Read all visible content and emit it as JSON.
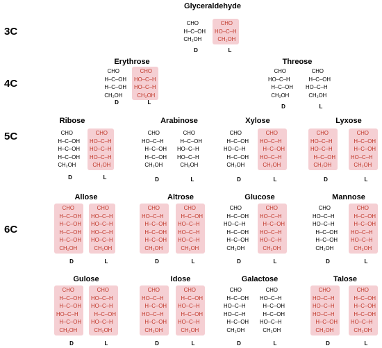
{
  "row_labels": [
    "3C",
    "4C",
    "5C",
    "6C"
  ],
  "sugars": [
    {
      "name": "Glyceraldehyde",
      "D": {
        "highlight": false,
        "lines": [
          "CHO",
          "H–C–OH",
          "CH₂OH"
        ]
      },
      "L": {
        "highlight": true,
        "lines": [
          "CHO",
          "HO–C–H",
          "CH₂OH"
        ]
      }
    },
    {
      "name": "Erythrose",
      "D": {
        "highlight": false,
        "lines": [
          "CHO",
          "H–C–OH",
          "H–C–OH",
          "CH₂OH"
        ]
      },
      "L": {
        "highlight": true,
        "lines": [
          "CHO",
          "HO–C–H",
          "HO–C–H",
          "CH₂OH"
        ]
      }
    },
    {
      "name": "Threose",
      "D": {
        "highlight": false,
        "lines": [
          "CHO",
          "HO–C–H",
          "H–C–OH",
          "CH₂OH"
        ]
      },
      "L": {
        "highlight": false,
        "lines": [
          "CHO",
          "H–C–OH",
          "HO–C–H",
          "CH₂OH"
        ]
      }
    },
    {
      "name": "Ribose",
      "D": {
        "highlight": false,
        "lines": [
          "CHO",
          "H–C–OH",
          "H–C–OH",
          "H–C–OH",
          "CH₂OH"
        ]
      },
      "L": {
        "highlight": true,
        "lines": [
          "CHO",
          "HO–C–H",
          "HO–C–H",
          "HO–C–H",
          "CH₂OH"
        ]
      }
    },
    {
      "name": "Arabinose",
      "D": {
        "highlight": false,
        "lines": [
          "CHO",
          "HO–C–H",
          "H–C–OH",
          "H–C–OH",
          "CH₂OH"
        ]
      },
      "L": {
        "highlight": false,
        "lines": [
          "CHO",
          "H–C–OH",
          "HO–C–H",
          "HO–C–H",
          "CH₂OH"
        ]
      }
    },
    {
      "name": "Xylose",
      "D": {
        "highlight": false,
        "lines": [
          "CHO",
          "H–C–OH",
          "HO–C–H",
          "H–C–OH",
          "CH₂OH"
        ]
      },
      "L": {
        "highlight": true,
        "lines": [
          "CHO",
          "HO–C–H",
          "H–C–OH",
          "HO–C–H",
          "CH₂OH"
        ]
      }
    },
    {
      "name": "Lyxose",
      "D": {
        "highlight": true,
        "lines": [
          "CHO",
          "HO–C–H",
          "HO–C–H",
          "H–C–OH",
          "CH₂OH"
        ]
      },
      "L": {
        "highlight": true,
        "lines": [
          "CHO",
          "H–C–OH",
          "H–C–OH",
          "HO–C–H",
          "CH₂OH"
        ]
      }
    },
    {
      "name": "Allose",
      "D": {
        "highlight": true,
        "lines": [
          "CHO",
          "H–C–OH",
          "H–C–OH",
          "H–C–OH",
          "H–C–OH",
          "CH₂OH"
        ]
      },
      "L": {
        "highlight": true,
        "lines": [
          "CHO",
          "HO–C–H",
          "HO–C–H",
          "HO–C–H",
          "HO–C–H",
          "CH₂OH"
        ]
      }
    },
    {
      "name": "Altrose",
      "D": {
        "highlight": true,
        "lines": [
          "CHO",
          "HO–C–H",
          "H–C–OH",
          "H–C–OH",
          "H–C–OH",
          "CH₂OH"
        ]
      },
      "L": {
        "highlight": true,
        "lines": [
          "CHO",
          "H–C–OH",
          "HO–C–H",
          "HO–C–H",
          "HO–C–H",
          "CH₂OH"
        ]
      }
    },
    {
      "name": "Glucose",
      "D": {
        "highlight": false,
        "lines": [
          "CHO",
          "H–C–OH",
          "HO–C–H",
          "H–C–OH",
          "H–C–OH",
          "CH₂OH"
        ]
      },
      "L": {
        "highlight": true,
        "lines": [
          "CHO",
          "HO–C–H",
          "H–C–OH",
          "HO–C–H",
          "HO–C–H",
          "CH₂OH"
        ]
      }
    },
    {
      "name": "Mannose",
      "D": {
        "highlight": false,
        "lines": [
          "CHO",
          "HO–C–H",
          "HO–C–H",
          "H–C–OH",
          "H–C–OH",
          "CH₂OH"
        ]
      },
      "L": {
        "highlight": true,
        "lines": [
          "CHO",
          "H–C–OH",
          "H–C–OH",
          "HO–C–H",
          "HO–C–H",
          "CH₂OH"
        ]
      }
    },
    {
      "name": "Gulose",
      "D": {
        "highlight": true,
        "lines": [
          "CHO",
          "H–C–OH",
          "H–C–OH",
          "HO–C–H",
          "H–C–OH",
          "CH₂OH"
        ]
      },
      "L": {
        "highlight": true,
        "lines": [
          "CHO",
          "HO–C–H",
          "HO–C–H",
          "H–C–OH",
          "HO–C–H",
          "CH₂OH"
        ]
      }
    },
    {
      "name": "Idose",
      "D": {
        "highlight": true,
        "lines": [
          "CHO",
          "HO–C–H",
          "H–C–OH",
          "HO–C–H",
          "H–C–OH",
          "CH₂OH"
        ]
      },
      "L": {
        "highlight": true,
        "lines": [
          "CHO",
          "H–C–OH",
          "HO–C–H",
          "H–C–OH",
          "HO–C–H",
          "CH₂OH"
        ]
      }
    },
    {
      "name": "Galactose",
      "D": {
        "highlight": false,
        "lines": [
          "CHO",
          "H–C–OH",
          "HO–C–H",
          "HO–C–H",
          "H–C–OH",
          "CH₂OH"
        ]
      },
      "L": {
        "highlight": false,
        "lines": [
          "CHO",
          "HO–C–H",
          "H–C–OH",
          "H–C–OH",
          "HO–C–H",
          "CH₂OH"
        ]
      }
    },
    {
      "name": "Talose",
      "D": {
        "highlight": true,
        "lines": [
          "CHO",
          "HO–C–H",
          "HO–C–H",
          "HO–C–H",
          "H–C–OH",
          "CH₂OH"
        ]
      },
      "L": {
        "highlight": true,
        "lines": [
          "CHO",
          "H–C–OH",
          "H–C–OH",
          "H–C–OH",
          "HO–C–H",
          "CH₂OH"
        ]
      }
    }
  ],
  "iso_labels": {
    "D": "D",
    "L": "L"
  },
  "colors": {
    "highlight_text": "#c0392b",
    "highlight_bg": "#f5cfd3"
  }
}
